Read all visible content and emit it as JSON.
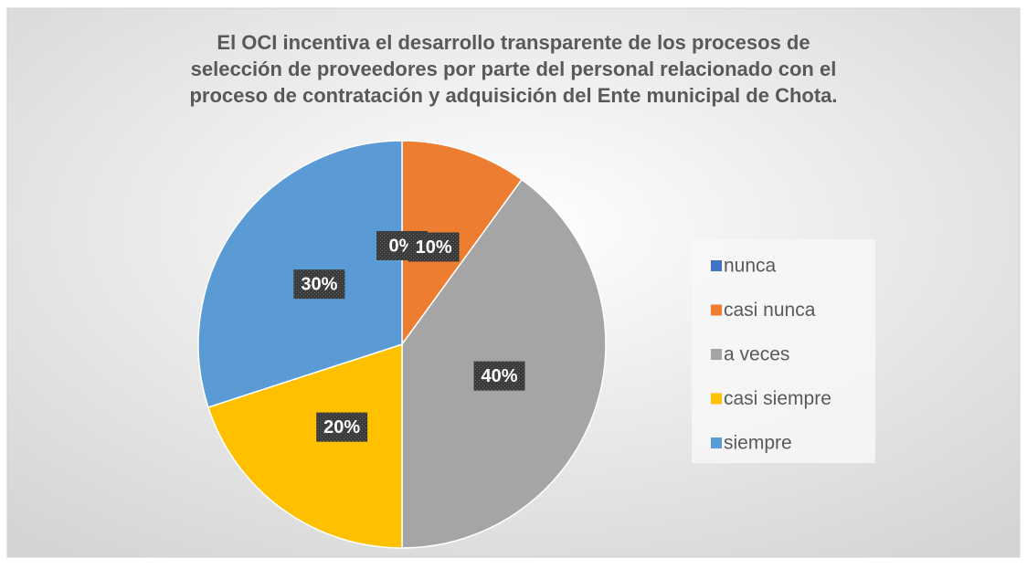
{
  "chart_data": {
    "type": "pie",
    "title": [
      "El OCI incentiva el desarrollo transparente de los procesos de",
      "selección de proveedores por parte del personal relacionado con el",
      "proceso de contratación y adquisición del Ente municipal de Chota."
    ],
    "categories": [
      "nunca",
      "casi nunca",
      "a veces",
      "casi siempre",
      "siempre"
    ],
    "values": [
      0,
      10,
      40,
      20,
      30
    ],
    "value_labels": [
      "0%",
      "10%",
      "40%",
      "20%",
      "30%"
    ],
    "colors": [
      "#4472c4",
      "#ed7d31",
      "#a5a5a5",
      "#ffc000",
      "#5b9bd5"
    ],
    "legend": "right"
  }
}
